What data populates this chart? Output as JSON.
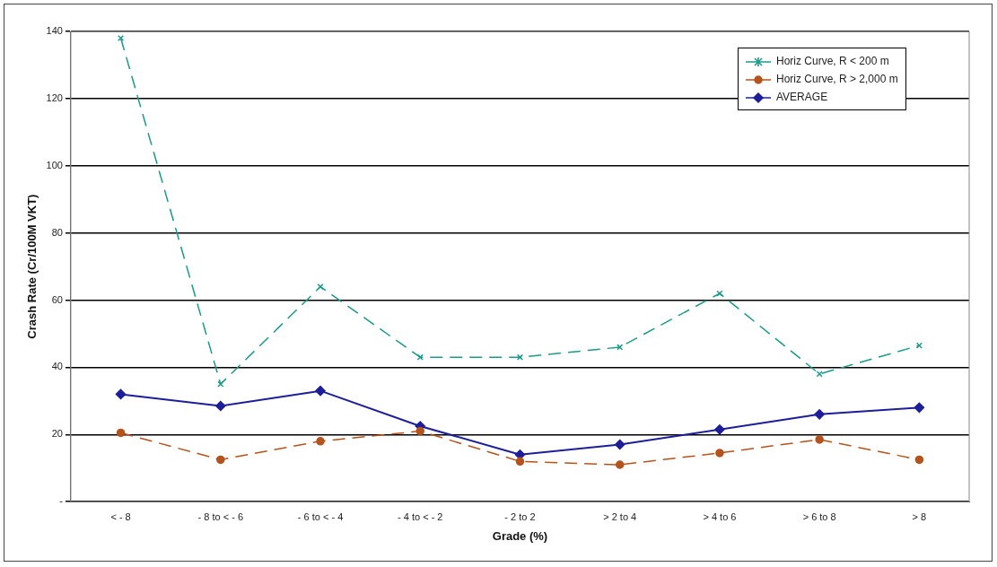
{
  "chart_data": {
    "type": "line",
    "xlabel": "Grade (%)",
    "ylabel": "Crash Rate (Cr/100M VKT)",
    "categories": [
      "< - 8",
      "- 8 to < - 6",
      "- 6 to < - 4",
      "- 4 to < - 2",
      "- 2 to 2",
      "> 2 to 4",
      "> 4 to 6",
      "> 6 to 8",
      "> 8"
    ],
    "series": [
      {
        "name": "Horiz Curve, R < 200 m",
        "color": "#1a9a8a",
        "marker": "cross",
        "line_style": "dashed",
        "values": [
          138,
          35,
          64,
          43,
          43,
          46,
          62,
          38,
          46.5
        ]
      },
      {
        "name": "Horiz Curve, R > 2,000 m",
        "color": "#b5531c",
        "marker": "circle",
        "line_style": "dashed",
        "values": [
          20.5,
          12.5,
          18,
          21,
          12,
          11,
          14.5,
          18.5,
          12.5
        ]
      },
      {
        "name": "AVERAGE",
        "color": "#1e1e9a",
        "marker": "diamond",
        "line_style": "solid",
        "values": [
          32,
          28.5,
          33,
          22.5,
          14,
          17,
          21.5,
          26,
          28
        ]
      }
    ],
    "ylim": [
      0,
      140
    ],
    "yticks": [
      {
        "value": 0,
        "label": "-"
      },
      20,
      40,
      60,
      80,
      100,
      120,
      140
    ],
    "grid": "y",
    "legend": "top right"
  }
}
